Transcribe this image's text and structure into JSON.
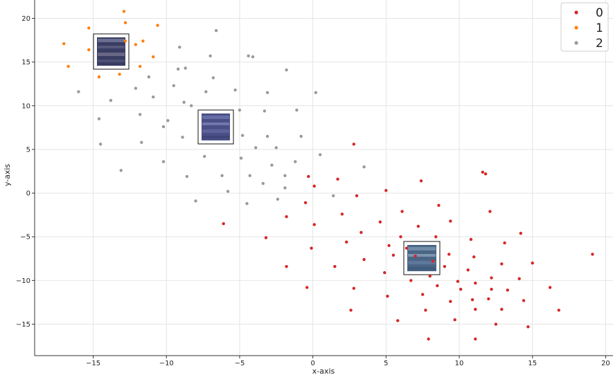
{
  "chart_data": {
    "type": "scatter",
    "title": "",
    "xlabel": "x-axis",
    "ylabel": "y-axis",
    "xlim": [
      -19,
      20.5
    ],
    "ylim": [
      -18.6,
      22.1
    ],
    "xticks": [
      -15,
      -10,
      -5,
      0,
      5,
      10,
      15,
      20
    ],
    "yticks": [
      -15,
      -10,
      -5,
      0,
      5,
      10,
      15,
      20
    ],
    "grid": true,
    "legend_position": "top-right",
    "series": [
      {
        "name": "0",
        "color": "#d62728",
        "points": [
          [
            -6.1,
            -3.5
          ],
          [
            -3.2,
            -5.1
          ],
          [
            -1.8,
            -2.7
          ],
          [
            -1.8,
            -8.4
          ],
          [
            -0.4,
            -10.8
          ],
          [
            -0.5,
            -1.1
          ],
          [
            -0.3,
            1.9
          ],
          [
            -0.1,
            -6.3
          ],
          [
            0.1,
            0.8
          ],
          [
            0.1,
            -3.6
          ],
          [
            1.5,
            -8.4
          ],
          [
            1.7,
            1.6
          ],
          [
            2.0,
            -2.4
          ],
          [
            2.3,
            -5.6
          ],
          [
            2.6,
            -13.4
          ],
          [
            2.8,
            5.6
          ],
          [
            2.8,
            -10.9
          ],
          [
            3.0,
            -0.3
          ],
          [
            3.3,
            -4.5
          ],
          [
            3.5,
            -7.6
          ],
          [
            4.6,
            -3.3
          ],
          [
            4.9,
            -9.1
          ],
          [
            5.0,
            0.3
          ],
          [
            5.1,
            -11.8
          ],
          [
            5.2,
            -6.0
          ],
          [
            5.5,
            -7.1
          ],
          [
            5.8,
            -14.6
          ],
          [
            6.0,
            -5.0
          ],
          [
            6.1,
            -2.1
          ],
          [
            6.4,
            -6.3
          ],
          [
            6.7,
            -10.0
          ],
          [
            7.0,
            -7.2
          ],
          [
            7.2,
            -3.8
          ],
          [
            7.4,
            1.4
          ],
          [
            7.5,
            -11.6
          ],
          [
            7.7,
            -13.4
          ],
          [
            7.9,
            -16.7
          ],
          [
            8.0,
            -9.5
          ],
          [
            8.2,
            -7.8
          ],
          [
            8.4,
            -5.0
          ],
          [
            8.5,
            -10.6
          ],
          [
            8.6,
            -1.4
          ],
          [
            9.0,
            -8.4
          ],
          [
            9.3,
            -7.0
          ],
          [
            9.4,
            -3.2
          ],
          [
            9.4,
            -12.4
          ],
          [
            9.7,
            -14.5
          ],
          [
            9.9,
            -10.1
          ],
          [
            10.1,
            -11.0
          ],
          [
            10.6,
            -8.8
          ],
          [
            10.8,
            -5.3
          ],
          [
            10.9,
            -12.2
          ],
          [
            11.0,
            -7.3
          ],
          [
            11.1,
            -10.3
          ],
          [
            11.1,
            -13.3
          ],
          [
            11.1,
            -16.7
          ],
          [
            11.6,
            2.4
          ],
          [
            11.8,
            2.2
          ],
          [
            12.0,
            -12.1
          ],
          [
            12.1,
            -2.1
          ],
          [
            12.2,
            -9.7
          ],
          [
            12.2,
            -11.0
          ],
          [
            12.5,
            -15.0
          ],
          [
            12.9,
            -13.3
          ],
          [
            12.9,
            -8.1
          ],
          [
            13.1,
            -5.7
          ],
          [
            13.3,
            -11.1
          ],
          [
            14.1,
            -9.8
          ],
          [
            14.2,
            -4.6
          ],
          [
            14.4,
            -12.3
          ],
          [
            14.7,
            -15.3
          ],
          [
            15.0,
            -8.0
          ],
          [
            16.2,
            -10.8
          ],
          [
            16.8,
            -13.4
          ],
          [
            19.1,
            -7.0
          ]
        ]
      },
      {
        "name": "1",
        "color": "#ff7f0e",
        "points": [
          [
            -17.0,
            17.1
          ],
          [
            -16.7,
            14.5
          ],
          [
            -15.3,
            18.9
          ],
          [
            -15.3,
            16.4
          ],
          [
            -14.6,
            13.3
          ],
          [
            -13.2,
            13.6
          ],
          [
            -12.9,
            20.8
          ],
          [
            -12.8,
            19.5
          ],
          [
            -12.8,
            17.4
          ],
          [
            -12.1,
            17.0
          ],
          [
            -11.8,
            14.5
          ],
          [
            -11.6,
            17.4
          ],
          [
            -10.9,
            15.6
          ],
          [
            -10.6,
            19.2
          ]
        ]
      },
      {
        "name": "2",
        "color": "#999999",
        "points": [
          [
            -16.0,
            11.6
          ],
          [
            -14.6,
            8.5
          ],
          [
            -14.5,
            5.6
          ],
          [
            -13.8,
            10.6
          ],
          [
            -13.1,
            2.6
          ],
          [
            -12.1,
            12.0
          ],
          [
            -11.8,
            9.0
          ],
          [
            -11.7,
            5.8
          ],
          [
            -11.2,
            13.3
          ],
          [
            -10.9,
            11.0
          ],
          [
            -10.2,
            3.6
          ],
          [
            -10.2,
            7.6
          ],
          [
            -9.9,
            8.3
          ],
          [
            -9.5,
            12.3
          ],
          [
            -9.2,
            14.2
          ],
          [
            -9.1,
            16.7
          ],
          [
            -8.9,
            6.4
          ],
          [
            -8.8,
            10.4
          ],
          [
            -8.7,
            14.3
          ],
          [
            -8.6,
            1.9
          ],
          [
            -8.3,
            10.0
          ],
          [
            -8.0,
            -0.9
          ],
          [
            -7.4,
            4.2
          ],
          [
            -7.3,
            11.6
          ],
          [
            -7.0,
            15.7
          ],
          [
            -6.8,
            13.2
          ],
          [
            -6.6,
            18.6
          ],
          [
            -6.2,
            2.0
          ],
          [
            -5.8,
            0.2
          ],
          [
            -5.3,
            11.8
          ],
          [
            -5.0,
            9.5
          ],
          [
            -4.9,
            4.0
          ],
          [
            -4.8,
            6.6
          ],
          [
            -4.5,
            -1.2
          ],
          [
            -4.4,
            15.7
          ],
          [
            -4.3,
            2.0
          ],
          [
            -4.1,
            15.6
          ],
          [
            -3.9,
            5.2
          ],
          [
            -3.4,
            1.1
          ],
          [
            -3.3,
            9.4
          ],
          [
            -3.1,
            11.5
          ],
          [
            -3.1,
            6.5
          ],
          [
            -2.8,
            3.2
          ],
          [
            -2.5,
            5.2
          ],
          [
            -2.4,
            -0.7
          ],
          [
            -1.9,
            0.6
          ],
          [
            -1.9,
            2.0
          ],
          [
            -1.8,
            14.1
          ],
          [
            -1.2,
            3.6
          ],
          [
            -1.1,
            9.5
          ],
          [
            -0.8,
            6.5
          ],
          [
            0.2,
            11.5
          ],
          [
            0.5,
            4.4
          ],
          [
            1.4,
            -0.3
          ],
          [
            3.5,
            3.0
          ]
        ]
      }
    ]
  }
}
